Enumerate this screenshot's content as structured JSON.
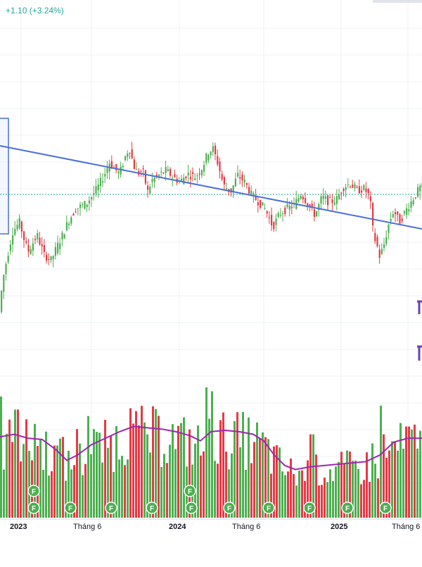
{
  "header": {
    "price_change": "+1.10 (+3.24%)"
  },
  "colors": {
    "up": "#4caf50",
    "down": "#e53945",
    "trendline": "#4a6fd6",
    "volume_ma": "#9c27b0",
    "grid": "#eef0f3",
    "axis_text": "#131722",
    "event_marker": "#4caf50",
    "right_marker": "#6a3fb5"
  },
  "chart_data": {
    "type": "candlestick",
    "x_ticks": [
      "2023",
      "Tháng 6",
      "2024",
      "Tháng 6",
      "2025",
      "Tháng 6"
    ],
    "event_marker_label": "F",
    "price_series_start": 31.2,
    "price_points": [
      [
        0,
        31.2
      ],
      [
        6,
        33.5
      ],
      [
        12,
        34.8
      ],
      [
        20,
        36.4
      ],
      [
        30,
        37.0
      ],
      [
        36,
        36.0
      ],
      [
        42,
        35.2
      ],
      [
        55,
        36.2
      ],
      [
        65,
        35.0
      ],
      [
        75,
        34.7
      ],
      [
        82,
        35.4
      ],
      [
        90,
        36.1
      ],
      [
        100,
        37.1
      ],
      [
        110,
        37.8
      ],
      [
        125,
        38.1
      ],
      [
        140,
        39.0
      ],
      [
        150,
        39.8
      ],
      [
        158,
        40.6
      ],
      [
        165,
        40.2
      ],
      [
        172,
        39.9
      ],
      [
        180,
        40.9
      ],
      [
        186,
        41.5
      ],
      [
        192,
        40.4
      ],
      [
        198,
        39.9
      ],
      [
        205,
        40.1
      ],
      [
        212,
        38.8
      ],
      [
        218,
        39.5
      ],
      [
        228,
        39.8
      ],
      [
        238,
        40.1
      ],
      [
        248,
        39.7
      ],
      [
        258,
        39.4
      ],
      [
        268,
        39.9
      ],
      [
        280,
        39.7
      ],
      [
        290,
        40.3
      ],
      [
        298,
        41.2
      ],
      [
        305,
        41.4
      ],
      [
        312,
        40.5
      ],
      [
        320,
        39.2
      ],
      [
        330,
        38.8
      ],
      [
        340,
        39.8
      ],
      [
        350,
        39.4
      ],
      [
        360,
        38.6
      ],
      [
        370,
        38.2
      ],
      [
        380,
        37.7
      ],
      [
        390,
        36.7
      ],
      [
        400,
        37.5
      ],
      [
        410,
        37.8
      ],
      [
        420,
        38.0
      ],
      [
        430,
        38.7
      ],
      [
        440,
        38.1
      ],
      [
        450,
        37.4
      ],
      [
        460,
        38.5
      ],
      [
        470,
        38.2
      ],
      [
        480,
        38.3
      ],
      [
        490,
        39.1
      ],
      [
        500,
        39.3
      ],
      [
        510,
        38.9
      ],
      [
        520,
        39.0
      ],
      [
        528,
        38.5
      ],
      [
        533,
        36.2
      ],
      [
        538,
        35.6
      ],
      [
        542,
        34.9
      ],
      [
        548,
        35.6
      ],
      [
        555,
        36.9
      ],
      [
        562,
        37.7
      ],
      [
        570,
        37.0
      ],
      [
        578,
        37.6
      ],
      [
        588,
        38.3
      ],
      [
        600,
        39.1
      ]
    ],
    "volume_ma_points": [
      [
        0,
        0.62
      ],
      [
        20,
        0.64
      ],
      [
        40,
        0.61
      ],
      [
        60,
        0.6
      ],
      [
        80,
        0.52
      ],
      [
        95,
        0.44
      ],
      [
        110,
        0.48
      ],
      [
        130,
        0.56
      ],
      [
        150,
        0.61
      ],
      [
        170,
        0.66
      ],
      [
        190,
        0.7
      ],
      [
        210,
        0.69
      ],
      [
        230,
        0.68
      ],
      [
        250,
        0.66
      ],
      [
        270,
        0.63
      ],
      [
        285,
        0.59
      ],
      [
        300,
        0.66
      ],
      [
        320,
        0.67
      ],
      [
        340,
        0.66
      ],
      [
        360,
        0.64
      ],
      [
        375,
        0.59
      ],
      [
        390,
        0.48
      ],
      [
        405,
        0.4
      ],
      [
        420,
        0.37
      ],
      [
        440,
        0.39
      ],
      [
        460,
        0.4
      ],
      [
        480,
        0.41
      ],
      [
        500,
        0.42
      ],
      [
        520,
        0.43
      ],
      [
        540,
        0.48
      ],
      [
        560,
        0.58
      ],
      [
        580,
        0.61
      ],
      [
        600,
        0.61
      ]
    ],
    "volume_spikes": [
      [
        0,
        0.93
      ],
      [
        22,
        0.83
      ],
      [
        48,
        0.72
      ],
      [
        88,
        0.62
      ],
      [
        108,
        0.68
      ],
      [
        124,
        0.78
      ],
      [
        132,
        0.68
      ],
      [
        184,
        0.84
      ],
      [
        240,
        0.56
      ],
      [
        292,
        1.0
      ],
      [
        300,
        0.97
      ],
      [
        340,
        0.54
      ],
      [
        442,
        0.64
      ],
      [
        528,
        0.57
      ],
      [
        540,
        0.86
      ],
      [
        545,
        0.64
      ],
      [
        560,
        0.58
      ],
      [
        578,
        0.7
      ]
    ],
    "event_markers_row1": [
      48,
      270
    ],
    "event_markers_row2": [
      48,
      100,
      158,
      216,
      272,
      326,
      382,
      440,
      494,
      548
    ]
  }
}
